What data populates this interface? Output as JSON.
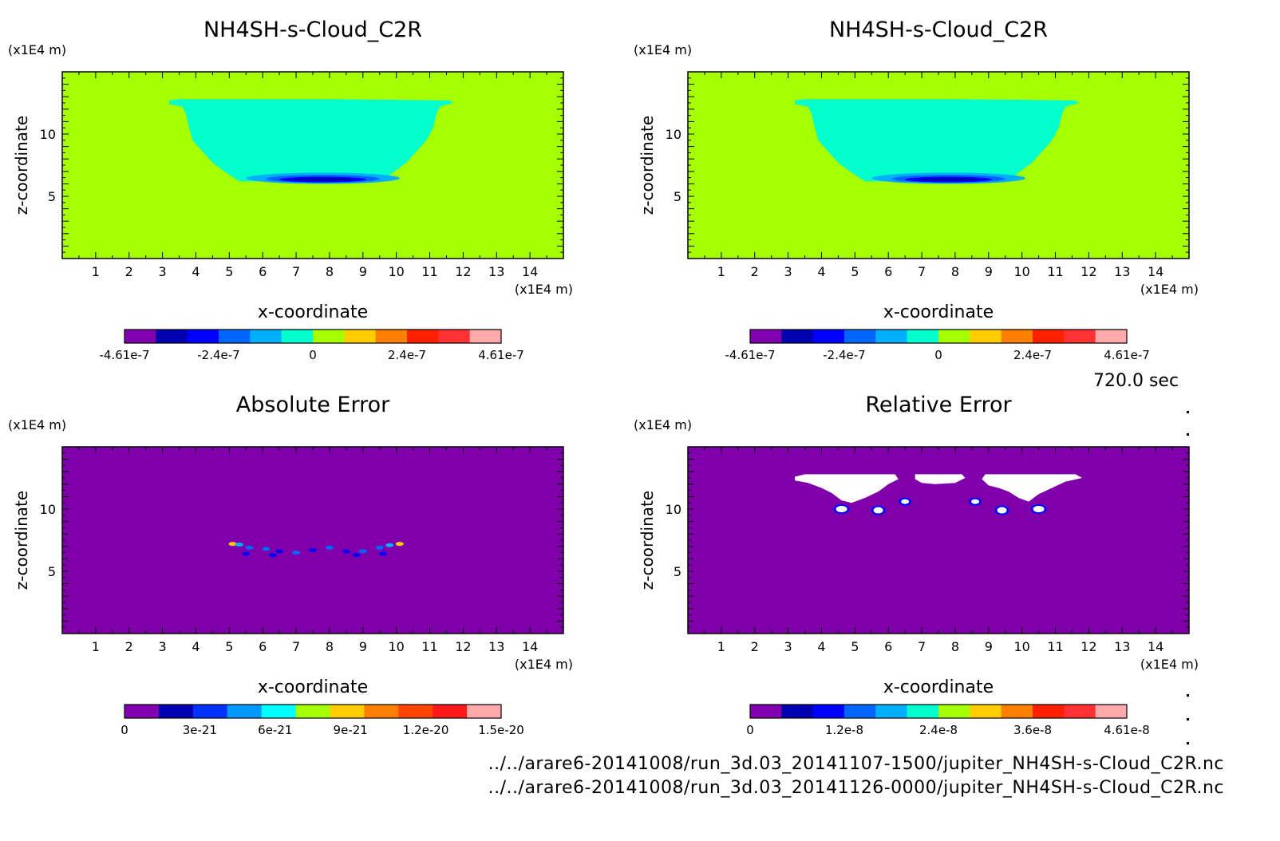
{
  "time_label": "720.0 sec",
  "footer": {
    "line1": "../../arare6-20141008/run_3d.03_20141107-1500/jupiter_NH4SH-s-Cloud_C2R.nc",
    "line2": "../../arare6-20141008/run_3d.03_20141126-0000/jupiter_NH4SH-s-Cloud_C2R.nc"
  },
  "chart_data": [
    {
      "type": "heatmap",
      "title": "NH4SH-s-Cloud_C2R",
      "xlabel": "x-coordinate",
      "ylabel": "z-coordinate",
      "x_unit": "(x1E4 m)",
      "y_unit": "(x1E4 m)",
      "xlim": [
        0,
        15
      ],
      "ylim": [
        0,
        15
      ],
      "xticks": [
        1,
        2,
        3,
        4,
        5,
        6,
        7,
        8,
        9,
        10,
        11,
        12,
        13,
        14
      ],
      "yticks": [
        5,
        10
      ],
      "background_color": "#a6ff00",
      "cloud_color": "#00ffcc",
      "colorbar": {
        "colors": [
          "#8000b0",
          "#0000b0",
          "#0000ff",
          "#0066ff",
          "#00b0ff",
          "#00ffcc",
          "#a6ff00",
          "#ffcc00",
          "#ff8000",
          "#ff2000",
          "#ff3333",
          "#ffaaaa"
        ],
        "tick_labels": [
          "-4.61e-7",
          "-2.4e-7",
          "0",
          "2.4e-7",
          "4.61e-7"
        ]
      }
    },
    {
      "type": "heatmap",
      "title": "NH4SH-s-Cloud_C2R",
      "xlabel": "x-coordinate",
      "ylabel": "z-coordinate",
      "x_unit": "(x1E4 m)",
      "y_unit": "(x1E4 m)",
      "xlim": [
        0,
        15
      ],
      "ylim": [
        0,
        15
      ],
      "xticks": [
        1,
        2,
        3,
        4,
        5,
        6,
        7,
        8,
        9,
        10,
        11,
        12,
        13,
        14
      ],
      "yticks": [
        5,
        10
      ],
      "background_color": "#a6ff00",
      "cloud_color": "#00ffcc",
      "colorbar": {
        "colors": [
          "#8000b0",
          "#0000b0",
          "#0000ff",
          "#0066ff",
          "#00b0ff",
          "#00ffcc",
          "#a6ff00",
          "#ffcc00",
          "#ff8000",
          "#ff2000",
          "#ff3333",
          "#ffaaaa"
        ],
        "tick_labels": [
          "-4.61e-7",
          "-2.4e-7",
          "0",
          "2.4e-7",
          "4.61e-7"
        ]
      }
    },
    {
      "type": "heatmap",
      "title": "Absolute Error",
      "xlabel": "x-coordinate",
      "ylabel": "z-coordinate",
      "x_unit": "(x1E4 m)",
      "y_unit": "(x1E4 m)",
      "xlim": [
        0,
        15
      ],
      "ylim": [
        0,
        15
      ],
      "xticks": [
        1,
        2,
        3,
        4,
        5,
        6,
        7,
        8,
        9,
        10,
        11,
        12,
        13,
        14
      ],
      "yticks": [
        5,
        10
      ],
      "background_color": "#7f00aa",
      "colorbar": {
        "colors": [
          "#8000b0",
          "#0000b0",
          "#0033ff",
          "#0099ff",
          "#00ffff",
          "#a6ff00",
          "#ffcc00",
          "#ff8000",
          "#ff4400",
          "#ff1a1a",
          "#ffaaaa"
        ],
        "tick_labels": [
          "0",
          "3e-21",
          "6e-21",
          "9e-21",
          "1.2e-20",
          "1.5e-20"
        ]
      }
    },
    {
      "type": "heatmap",
      "title": "Relative Error",
      "xlabel": "x-coordinate",
      "ylabel": "z-coordinate",
      "x_unit": "(x1E4 m)",
      "y_unit": "(x1E4 m)",
      "xlim": [
        0,
        15
      ],
      "ylim": [
        0,
        15
      ],
      "xticks": [
        1,
        2,
        3,
        4,
        5,
        6,
        7,
        8,
        9,
        10,
        11,
        12,
        13,
        14
      ],
      "yticks": [
        5,
        10
      ],
      "background_color": "#7f00aa",
      "colorbar": {
        "colors": [
          "#8000b0",
          "#0000b0",
          "#0000ff",
          "#0066ff",
          "#00b0ff",
          "#00ffcc",
          "#a6ff00",
          "#ffcc00",
          "#ff8000",
          "#ff2000",
          "#ff3333",
          "#ffaaaa"
        ],
        "tick_labels": [
          "0",
          "1.2e-8",
          "2.4e-8",
          "3.6e-8",
          "4.61e-8"
        ]
      }
    }
  ]
}
